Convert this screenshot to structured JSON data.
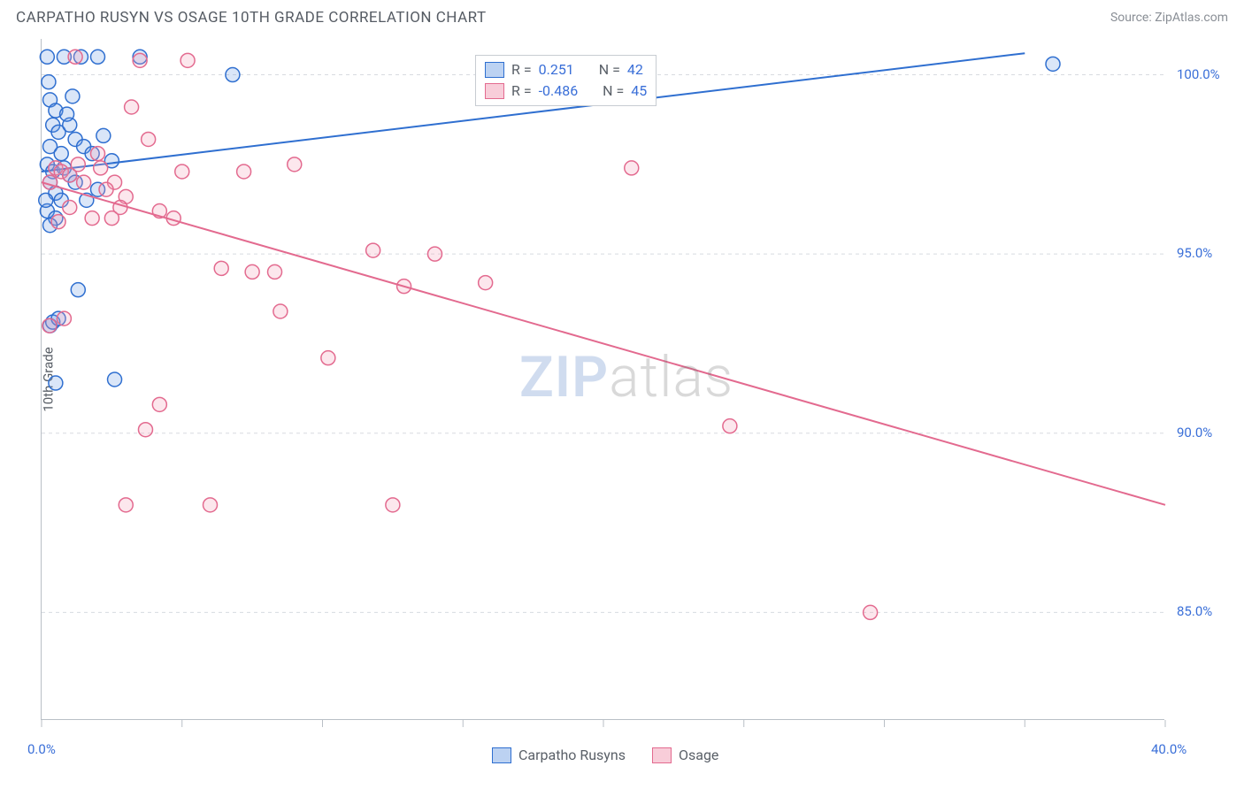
{
  "title": "CARPATHO RUSYN VS OSAGE 10TH GRADE CORRELATION CHART",
  "source_label": "Source: ZipAtlas.com",
  "y_axis_label": "10th Grade",
  "watermark": {
    "left": "ZIP",
    "right": "atlas"
  },
  "chart": {
    "type": "scatter",
    "background_color": "#ffffff",
    "grid_color": "#d8dbe0",
    "axis_color": "#b9bfc6",
    "text_color": "#5a6068",
    "value_color": "#3a6fd8",
    "xlim": [
      0,
      40
    ],
    "ylim": [
      82,
      101
    ],
    "x_ticks": [
      0,
      5,
      10,
      15,
      20,
      25,
      30,
      35,
      40
    ],
    "x_tick_labels": {
      "0": "0.0%",
      "40": "40.0%"
    },
    "y_ticks": [
      85,
      90,
      95,
      100
    ],
    "y_tick_labels": {
      "85": "85.0%",
      "90": "90.0%",
      "95": "95.0%",
      "100": "100.0%"
    },
    "marker_radius": 8,
    "marker_stroke_width": 1.5,
    "marker_fill_opacity": 0.25,
    "trend_line_width": 2,
    "series": [
      {
        "name": "Carpatho Rusyns",
        "color_stroke": "#2f6fd0",
        "color_fill": "#6a9be5",
        "R": "0.251",
        "N": "42",
        "trend": {
          "x1": 0,
          "y1": 97.3,
          "x2": 35,
          "y2": 100.6
        },
        "points": [
          [
            0.2,
            100.5
          ],
          [
            0.8,
            100.5
          ],
          [
            1.4,
            100.5
          ],
          [
            2.0,
            100.5
          ],
          [
            3.5,
            100.5
          ],
          [
            6.8,
            100.0
          ],
          [
            0.3,
            99.3
          ],
          [
            0.5,
            99.0
          ],
          [
            0.4,
            98.6
          ],
          [
            0.6,
            98.4
          ],
          [
            1.0,
            98.6
          ],
          [
            1.2,
            98.2
          ],
          [
            0.3,
            98.0
          ],
          [
            0.7,
            97.8
          ],
          [
            1.5,
            98.0
          ],
          [
            1.8,
            97.8
          ],
          [
            2.2,
            98.3
          ],
          [
            2.5,
            97.6
          ],
          [
            0.2,
            97.5
          ],
          [
            0.4,
            97.3
          ],
          [
            0.8,
            97.4
          ],
          [
            1.0,
            97.2
          ],
          [
            0.3,
            97.0
          ],
          [
            0.5,
            96.7
          ],
          [
            0.7,
            96.5
          ],
          [
            1.2,
            97.0
          ],
          [
            0.2,
            96.2
          ],
          [
            0.5,
            96.0
          ],
          [
            0.3,
            93.0
          ],
          [
            0.4,
            93.1
          ],
          [
            0.6,
            93.2
          ],
          [
            1.3,
            94.0
          ],
          [
            2.6,
            91.5
          ],
          [
            0.5,
            91.4
          ],
          [
            36.0,
            100.3
          ],
          [
            1.6,
            96.5
          ],
          [
            0.3,
            95.8
          ],
          [
            2.0,
            96.8
          ],
          [
            0.9,
            98.9
          ],
          [
            1.1,
            99.4
          ],
          [
            0.25,
            99.8
          ],
          [
            0.15,
            96.5
          ]
        ]
      },
      {
        "name": "Osage",
        "color_stroke": "#e36a8f",
        "color_fill": "#f2a0b8",
        "R": "-0.486",
        "N": "45",
        "trend": {
          "x1": 0,
          "y1": 97.0,
          "x2": 40,
          "y2": 88.0
        },
        "points": [
          [
            1.2,
            100.5
          ],
          [
            3.5,
            100.4
          ],
          [
            5.2,
            100.4
          ],
          [
            0.5,
            97.4
          ],
          [
            0.7,
            97.3
          ],
          [
            1.0,
            97.2
          ],
          [
            1.3,
            97.5
          ],
          [
            2.1,
            97.4
          ],
          [
            2.6,
            97.0
          ],
          [
            3.0,
            96.6
          ],
          [
            3.2,
            99.1
          ],
          [
            3.8,
            98.2
          ],
          [
            2.3,
            96.8
          ],
          [
            2.8,
            96.3
          ],
          [
            4.2,
            96.2
          ],
          [
            4.7,
            96.0
          ],
          [
            5.0,
            97.3
          ],
          [
            7.2,
            97.3
          ],
          [
            9.0,
            97.5
          ],
          [
            6.4,
            94.6
          ],
          [
            7.5,
            94.5
          ],
          [
            8.3,
            94.5
          ],
          [
            11.8,
            95.1
          ],
          [
            12.9,
            94.1
          ],
          [
            14.0,
            95.0
          ],
          [
            15.8,
            94.2
          ],
          [
            21.0,
            97.4
          ],
          [
            4.2,
            90.8
          ],
          [
            3.7,
            90.1
          ],
          [
            3.0,
            88.0
          ],
          [
            8.5,
            93.4
          ],
          [
            10.2,
            92.1
          ],
          [
            12.5,
            88.0
          ],
          [
            24.5,
            90.2
          ],
          [
            29.5,
            85.0
          ],
          [
            1.8,
            96.0
          ],
          [
            1.5,
            97.0
          ],
          [
            2.0,
            97.8
          ],
          [
            2.5,
            96.0
          ],
          [
            1.0,
            96.3
          ],
          [
            0.3,
            97.0
          ],
          [
            0.8,
            93.2
          ],
          [
            0.28,
            93.0
          ],
          [
            0.6,
            95.9
          ],
          [
            6.0,
            88.0
          ]
        ]
      }
    ],
    "legend_top": {
      "rows": [
        {
          "swatch_stroke": "#2f6fd0",
          "swatch_fill": "#bcd2f2",
          "r_label": "R =",
          "r_value": "0.251",
          "n_label": "N =",
          "n_value": "42"
        },
        {
          "swatch_stroke": "#e36a8f",
          "swatch_fill": "#f8cdd9",
          "r_label": "R =",
          "r_value": "-0.486",
          "n_label": "N =",
          "n_value": "45"
        }
      ]
    },
    "legend_bottom": {
      "items": [
        {
          "swatch_stroke": "#2f6fd0",
          "swatch_fill": "#bcd2f2",
          "label": "Carpatho Rusyns"
        },
        {
          "swatch_stroke": "#e36a8f",
          "swatch_fill": "#f8cdd9",
          "label": "Osage"
        }
      ]
    }
  }
}
